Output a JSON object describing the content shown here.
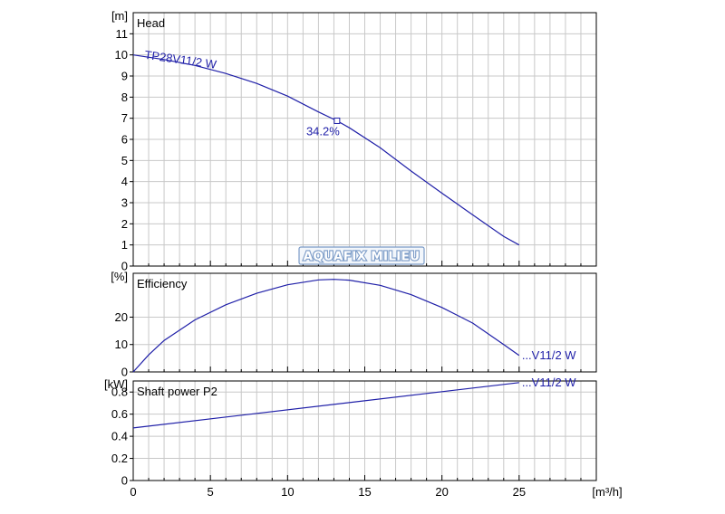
{
  "chart_data": [
    {
      "type": "line",
      "panel_title": "Head",
      "ylabel": "[m]",
      "xlim": [
        0,
        30
      ],
      "ylim": [
        0,
        12
      ],
      "yticks": [
        0,
        1,
        2,
        3,
        4,
        5,
        6,
        7,
        8,
        9,
        10,
        11
      ],
      "grid": true,
      "series": [
        {
          "name": "TP28V11/2 W",
          "x": [
            0,
            2,
            4,
            6,
            8,
            10,
            12,
            13.2,
            14,
            16,
            18,
            20,
            22,
            24,
            25
          ],
          "values": [
            10.0,
            9.78,
            9.5,
            9.12,
            8.65,
            8.05,
            7.3,
            6.88,
            6.55,
            5.6,
            4.5,
            3.45,
            2.42,
            1.4,
            1.0
          ]
        }
      ],
      "operating_point": {
        "x": 13.2,
        "y": 6.88,
        "label": "34.2%"
      },
      "watermark": "AQUAFIX MILIEU"
    },
    {
      "type": "line",
      "panel_title": "Efficiency",
      "ylabel": "[%]",
      "xlim": [
        0,
        30
      ],
      "ylim": [
        0,
        36
      ],
      "yticks": [
        0,
        10,
        20
      ],
      "grid": true,
      "series": [
        {
          "name": "...V11/2 W",
          "x": [
            0,
            1,
            2,
            4,
            6,
            8,
            10,
            12,
            13,
            14,
            16,
            18,
            20,
            22,
            24,
            25
          ],
          "values": [
            0,
            6.2,
            11.5,
            19.0,
            24.5,
            28.7,
            31.8,
            33.6,
            33.8,
            33.5,
            31.6,
            28.2,
            23.5,
            17.8,
            10.0,
            6.0
          ]
        }
      ]
    },
    {
      "type": "line",
      "panel_title": "Shaft power P2",
      "ylabel": "[kW]",
      "xlabel": "[m³/h]",
      "xlim": [
        0,
        30
      ],
      "ylim": [
        0,
        0.9
      ],
      "yticks": [
        0,
        0.2,
        0.4,
        0.6,
        0.8
      ],
      "xticks": [
        0,
        5,
        10,
        15,
        20,
        25
      ],
      "grid": true,
      "series": [
        {
          "name": "...V11/2 W",
          "x": [
            0,
            25
          ],
          "values": [
            0.475,
            0.885
          ]
        }
      ]
    }
  ]
}
